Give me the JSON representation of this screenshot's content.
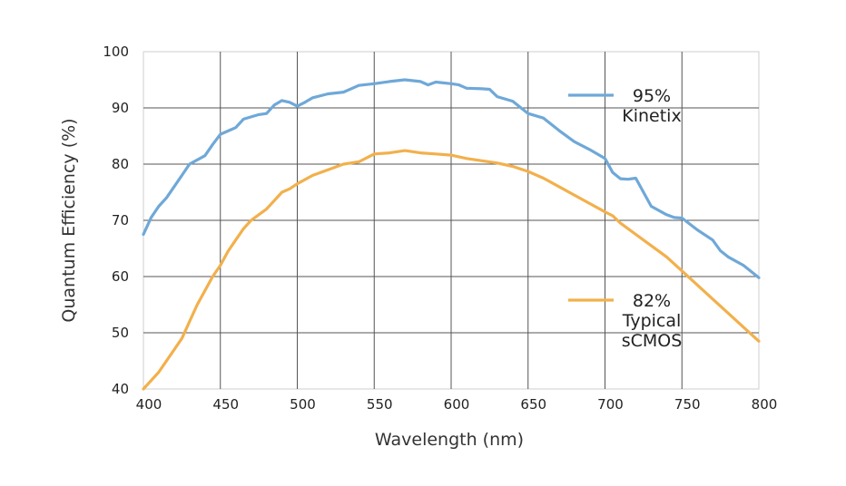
{
  "chart_data": {
    "type": "line",
    "title": "",
    "xlabel": "Wavelength (nm)",
    "ylabel": "Quantum Efficiency (%)",
    "xlim": [
      400,
      800
    ],
    "ylim": [
      40,
      100
    ],
    "xticks": [
      "400",
      "450",
      "500",
      "550",
      "600",
      "650",
      "700",
      "750",
      "800"
    ],
    "yticks": [
      "40",
      "50",
      "60",
      "70",
      "80",
      "90",
      "100"
    ],
    "grid": true,
    "legend_position": "right",
    "series": [
      {
        "name_lines": [
          "95%",
          "Kinetix"
        ],
        "color": "#6fa8d8",
        "points": [
          [
            400,
            67.5
          ],
          [
            405,
            70.5
          ],
          [
            410,
            72.5
          ],
          [
            415,
            74
          ],
          [
            420,
            76
          ],
          [
            425,
            78
          ],
          [
            430,
            80
          ],
          [
            440,
            81.5
          ],
          [
            445,
            83.5
          ],
          [
            450,
            85.3
          ],
          [
            460,
            86.5
          ],
          [
            465,
            88
          ],
          [
            475,
            88.8
          ],
          [
            480,
            89
          ],
          [
            485,
            90.5
          ],
          [
            490,
            91.3
          ],
          [
            495,
            91
          ],
          [
            500,
            90.3
          ],
          [
            505,
            91
          ],
          [
            510,
            91.8
          ],
          [
            520,
            92.5
          ],
          [
            530,
            92.8
          ],
          [
            540,
            94
          ],
          [
            550,
            94.3
          ],
          [
            560,
            94.7
          ],
          [
            570,
            95
          ],
          [
            580,
            94.7
          ],
          [
            585,
            94.1
          ],
          [
            590,
            94.6
          ],
          [
            600,
            94.3
          ],
          [
            605,
            94.1
          ],
          [
            610,
            93.5
          ],
          [
            620,
            93.4
          ],
          [
            625,
            93.3
          ],
          [
            630,
            92
          ],
          [
            640,
            91.2
          ],
          [
            650,
            89
          ],
          [
            660,
            88.2
          ],
          [
            670,
            86
          ],
          [
            680,
            84
          ],
          [
            690,
            82.6
          ],
          [
            700,
            81
          ],
          [
            705,
            78.5
          ],
          [
            710,
            77.4
          ],
          [
            715,
            77.3
          ],
          [
            720,
            77.5
          ],
          [
            725,
            75
          ],
          [
            730,
            72.5
          ],
          [
            740,
            71
          ],
          [
            745,
            70.5
          ],
          [
            750,
            70.4
          ],
          [
            760,
            68.3
          ],
          [
            770,
            66.5
          ],
          [
            775,
            64.6
          ],
          [
            780,
            63.5
          ],
          [
            790,
            62
          ],
          [
            800,
            59.8
          ]
        ]
      },
      {
        "name_lines": [
          "82%",
          "Typical",
          "sCMOS"
        ],
        "color": "#f2b04c",
        "points": [
          [
            400,
            40
          ],
          [
            405,
            41.5
          ],
          [
            410,
            43
          ],
          [
            415,
            45
          ],
          [
            420,
            47
          ],
          [
            425,
            49
          ],
          [
            430,
            52
          ],
          [
            435,
            55
          ],
          [
            440,
            57.5
          ],
          [
            445,
            60
          ],
          [
            450,
            62
          ],
          [
            455,
            64.5
          ],
          [
            460,
            66.5
          ],
          [
            465,
            68.5
          ],
          [
            470,
            70
          ],
          [
            480,
            72
          ],
          [
            485,
            73.5
          ],
          [
            490,
            75
          ],
          [
            495,
            75.6
          ],
          [
            500,
            76.5
          ],
          [
            510,
            78
          ],
          [
            520,
            79
          ],
          [
            530,
            80
          ],
          [
            540,
            80.4
          ],
          [
            550,
            81.8
          ],
          [
            560,
            82
          ],
          [
            570,
            82.4
          ],
          [
            580,
            82
          ],
          [
            590,
            81.8
          ],
          [
            600,
            81.6
          ],
          [
            610,
            81
          ],
          [
            620,
            80.6
          ],
          [
            630,
            80.2
          ],
          [
            640,
            79.6
          ],
          [
            650,
            78.7
          ],
          [
            660,
            77.5
          ],
          [
            670,
            76
          ],
          [
            680,
            74.5
          ],
          [
            690,
            73
          ],
          [
            700,
            71.5
          ],
          [
            705,
            70.8
          ],
          [
            710,
            69.5
          ],
          [
            720,
            67.5
          ],
          [
            730,
            65.5
          ],
          [
            740,
            63.5
          ],
          [
            750,
            61
          ],
          [
            760,
            58.5
          ],
          [
            770,
            56
          ],
          [
            780,
            53.5
          ],
          [
            790,
            51
          ],
          [
            800,
            48.5
          ]
        ]
      }
    ]
  }
}
